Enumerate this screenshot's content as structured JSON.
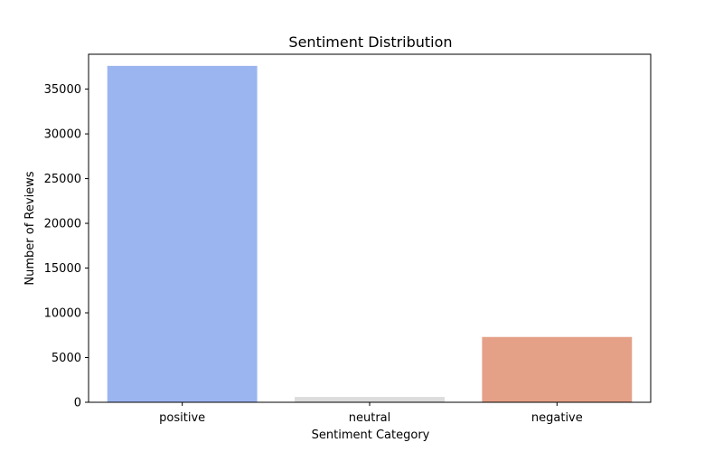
{
  "chart_data": {
    "type": "bar",
    "title": "Sentiment Distribution",
    "xlabel": "Sentiment Category",
    "ylabel": "Number of Reviews",
    "categories": [
      "positive",
      "neutral",
      "negative"
    ],
    "values": [
      37600,
      600,
      7300
    ],
    "colors": [
      "#9bb5f0",
      "#dcdcdc",
      "#e5a088"
    ],
    "ylim": [
      0,
      38900
    ],
    "yticks": [
      0,
      5000,
      10000,
      15000,
      20000,
      25000,
      30000,
      35000
    ],
    "grid": false,
    "legend": "none"
  }
}
